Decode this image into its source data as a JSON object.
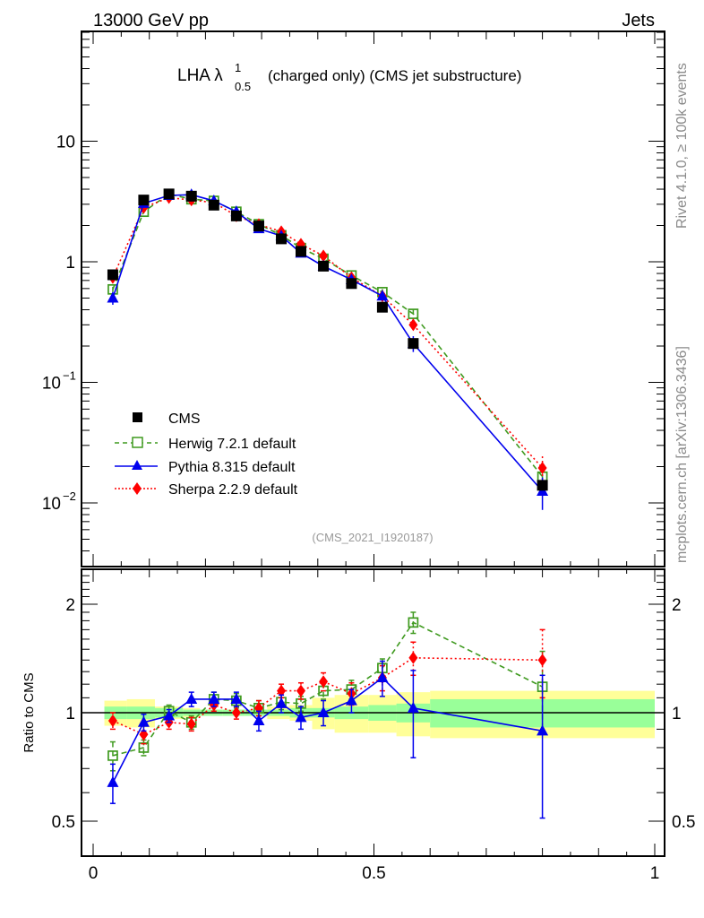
{
  "header": {
    "left": "13000 GeV pp",
    "right": "Jets"
  },
  "side_labels": {
    "rivet": "Rivet 4.1.0, ≥ 100k events",
    "mcplots": "mcplots.cern.ch [arXiv:1306.3436]"
  },
  "chart_data": [
    {
      "type": "line",
      "panel": "main",
      "title": "LHA λ",
      "title_sup": "1",
      "title_sub": "0.5",
      "title_rest": "(charged only) (CMS jet substructure)",
      "analysis_tag": "(CMS_2021_I1920187)",
      "xlabel": "",
      "ylabel": "",
      "yscale": "log",
      "xlim": [
        0,
        1
      ],
      "ylim": [
        0.003,
        50
      ],
      "y_ticks": [
        {
          "value": 10,
          "label": "10",
          "exp": ""
        },
        {
          "value": 1,
          "label": "1",
          "exp": ""
        },
        {
          "value": 0.1,
          "label": "10",
          "exp": "−1"
        },
        {
          "value": 0.01,
          "label": "10",
          "exp": "−2"
        }
      ],
      "legend_position": "lower-left",
      "x": [
        0.035,
        0.09,
        0.135,
        0.175,
        0.215,
        0.255,
        0.295,
        0.335,
        0.37,
        0.41,
        0.46,
        0.515,
        0.57,
        0.8
      ],
      "series": [
        {
          "name": "CMS",
          "color": "#000000",
          "marker": "square-filled",
          "line": "none",
          "values": [
            0.78,
            3.25,
            3.65,
            3.5,
            2.95,
            2.4,
            1.98,
            1.55,
            1.22,
            0.92,
            0.66,
            0.42,
            0.21,
            0.014
          ]
        },
        {
          "name": "Herwig 7.2.1 default",
          "color": "#3f9a1f",
          "marker": "square-open",
          "line": "dashed",
          "values": [
            0.59,
            2.6,
            3.65,
            3.3,
            3.2,
            2.6,
            2.05,
            1.66,
            1.3,
            1.06,
            0.77,
            0.56,
            0.37,
            0.0165
          ]
        },
        {
          "name": "Pythia 8.315 default",
          "color": "#0000ee",
          "marker": "triangle-filled",
          "line": "solid",
          "values": [
            0.5,
            3.05,
            3.55,
            3.6,
            3.2,
            2.6,
            1.88,
            1.64,
            1.18,
            0.92,
            0.71,
            0.52,
            0.21,
            0.0125
          ]
        },
        {
          "name": "Sherpa 2.2.9 default",
          "color": "#ff0000",
          "marker": "diamond-filled",
          "line": "dotted",
          "values": [
            0.74,
            2.82,
            3.4,
            3.25,
            3.1,
            2.4,
            2.04,
            1.78,
            1.4,
            1.12,
            0.74,
            0.52,
            0.3,
            0.0195
          ]
        }
      ],
      "errors_rel": {
        "Pythia 8.315 default": [
          0.12,
          0.04,
          0.03,
          0.03,
          0.03,
          0.03,
          0.05,
          0.05,
          0.06,
          0.06,
          0.07,
          0.08,
          0.15,
          0.3
        ],
        "Herwig 7.2.1 default": [
          0.05,
          0.03,
          0.03,
          0.03,
          0.03,
          0.03,
          0.04,
          0.04,
          0.05,
          0.05,
          0.05,
          0.06,
          0.1,
          0.25
        ],
        "Sherpa 2.2.9 default": [
          0.05,
          0.03,
          0.03,
          0.03,
          0.03,
          0.03,
          0.04,
          0.04,
          0.05,
          0.05,
          0.06,
          0.07,
          0.12,
          0.25
        ]
      }
    },
    {
      "type": "line",
      "panel": "ratio",
      "title": "",
      "xlabel": "",
      "ylabel": "Ratio to CMS",
      "yscale": "log",
      "xlim": [
        0,
        1
      ],
      "ylim": [
        0.4,
        2.5
      ],
      "y_ticks": [
        {
          "value": 2,
          "label": "2"
        },
        {
          "value": 1,
          "label": "1"
        },
        {
          "value": 0.5,
          "label": "0.5"
        }
      ],
      "x_ticks": [
        {
          "value": 0,
          "label": "0"
        },
        {
          "value": 0.5,
          "label": "0.5"
        },
        {
          "value": 1,
          "label": "1"
        }
      ],
      "x": [
        0.035,
        0.09,
        0.135,
        0.175,
        0.215,
        0.255,
        0.295,
        0.335,
        0.37,
        0.41,
        0.46,
        0.515,
        0.57,
        0.8
      ],
      "series": [
        {
          "name": "Herwig 7.2.1 default",
          "color": "#3f9a1f",
          "marker": "square-open",
          "line": "dashed",
          "values": [
            0.76,
            0.8,
            1.01,
            0.94,
            1.09,
            1.08,
            1.03,
            1.07,
            1.06,
            1.15,
            1.16,
            1.33,
            1.78,
            1.18
          ]
        },
        {
          "name": "Pythia 8.315 default",
          "color": "#0000ee",
          "marker": "triangle-filled",
          "line": "solid",
          "values": [
            0.64,
            0.94,
            0.98,
            1.09,
            1.09,
            1.09,
            0.95,
            1.06,
            0.97,
            1.0,
            1.08,
            1.25,
            1.03,
            0.89
          ]
        },
        {
          "name": "Sherpa 2.2.9 default",
          "color": "#ff0000",
          "marker": "diamond-filled",
          "line": "dotted",
          "values": [
            0.95,
            0.87,
            0.94,
            0.93,
            1.05,
            1.0,
            1.03,
            1.15,
            1.15,
            1.22,
            1.13,
            1.25,
            1.42,
            1.4
          ]
        }
      ],
      "ratio_errors": {
        "Herwig 7.2.1 default": [
          0.07,
          0.04,
          0.04,
          0.04,
          0.05,
          0.05,
          0.05,
          0.05,
          0.05,
          0.06,
          0.07,
          0.08,
          0.12,
          0.3
        ],
        "Pythia 8.315 default": [
          0.08,
          0.05,
          0.04,
          0.05,
          0.05,
          0.05,
          0.06,
          0.06,
          0.07,
          0.08,
          0.08,
          0.14,
          0.28,
          0.38
        ],
        "Sherpa 2.2.9 default": [
          0.05,
          0.05,
          0.04,
          0.04,
          0.04,
          0.04,
          0.05,
          0.05,
          0.06,
          0.07,
          0.08,
          0.1,
          0.15,
          0.3
        ]
      },
      "bands": {
        "bin_edges": [
          0.02,
          0.06,
          0.11,
          0.16,
          0.19,
          0.23,
          0.27,
          0.31,
          0.35,
          0.39,
          0.43,
          0.49,
          0.54,
          0.6,
          1.0
        ],
        "stat_rel": [
          0.04,
          0.04,
          0.03,
          0.02,
          0.02,
          0.02,
          0.02,
          0.02,
          0.03,
          0.03,
          0.04,
          0.05,
          0.06,
          0.09
        ],
        "total_rel": [
          0.08,
          0.09,
          0.04,
          0.03,
          0.02,
          0.02,
          0.02,
          0.04,
          0.05,
          0.1,
          0.12,
          0.12,
          0.14,
          0.15
        ],
        "stat_color": "#99ff99",
        "total_color": "#ffff99"
      }
    }
  ]
}
